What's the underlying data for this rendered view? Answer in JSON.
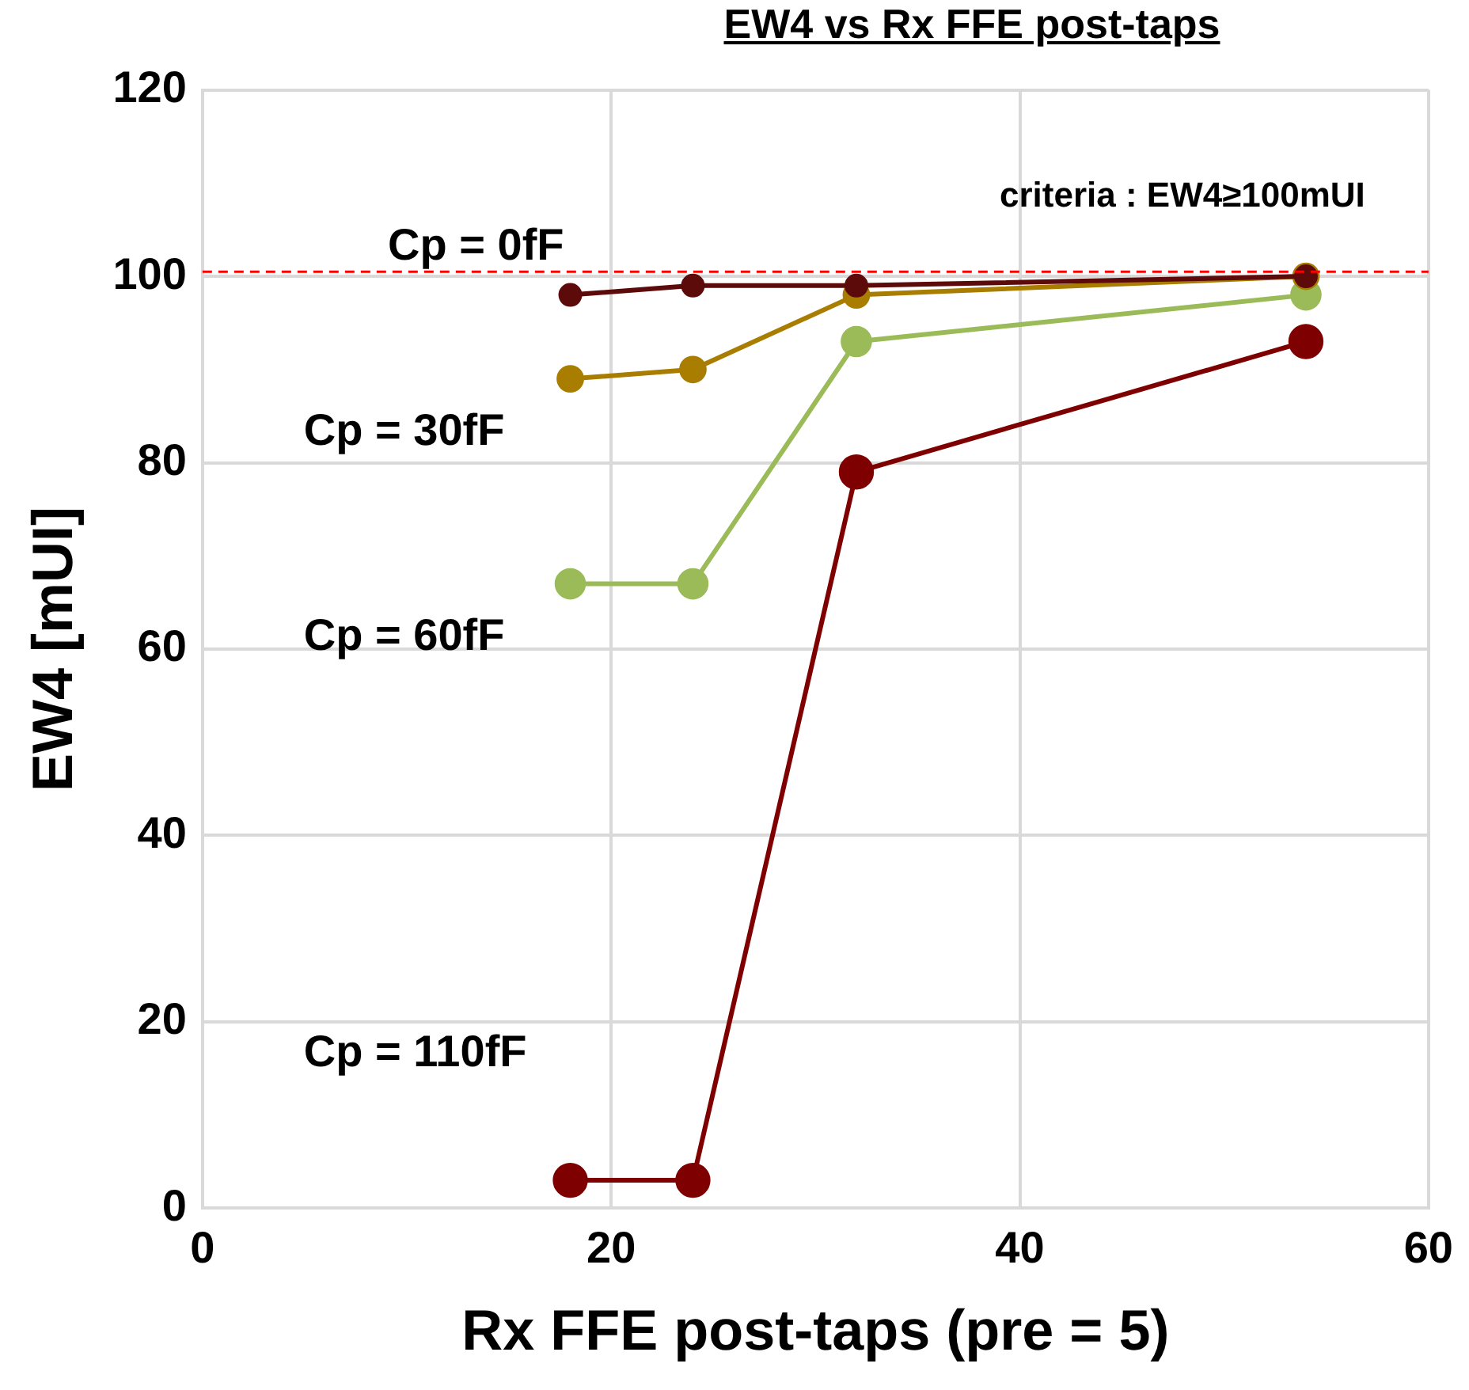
{
  "chart_data": {
    "type": "line",
    "title": "EW4 vs Rx FFE post-taps",
    "xlabel": "Rx FFE post-taps (pre = 5)",
    "ylabel": "EW4 [mUI]",
    "xlim": [
      0,
      60
    ],
    "xticks": [
      0,
      20,
      40,
      60
    ],
    "ylim": [
      0,
      120
    ],
    "yticks": [
      0,
      20,
      40,
      60,
      80,
      100,
      120
    ],
    "grid": true,
    "legend": false,
    "marker": "circle",
    "line_style": "solid",
    "series": [
      {
        "name": "Cp = 0fF",
        "color": "#5c0a0a",
        "x": [
          18,
          24,
          32,
          54
        ],
        "values": [
          98,
          99,
          99,
          100
        ]
      },
      {
        "name": "Cp = 30fF",
        "color": "#a87d00",
        "x": [
          18,
          24,
          32,
          54
        ],
        "values": [
          89,
          90,
          98,
          100
        ]
      },
      {
        "name": "Cp = 60fF",
        "color": "#9bbb59",
        "x": [
          18,
          24,
          32,
          54
        ],
        "values": [
          67,
          67,
          93,
          98
        ]
      },
      {
        "name": "Cp = 110fF",
        "color": "#7f0000",
        "x": [
          18,
          24,
          32,
          54
        ],
        "values": [
          3,
          3,
          79,
          93
        ]
      }
    ],
    "ref_lines": [
      {
        "axis": "y",
        "value": 100.5,
        "label": "criteria : EW4≥100mUI",
        "color": "#ff0000",
        "line_style": "dashed"
      }
    ]
  }
}
